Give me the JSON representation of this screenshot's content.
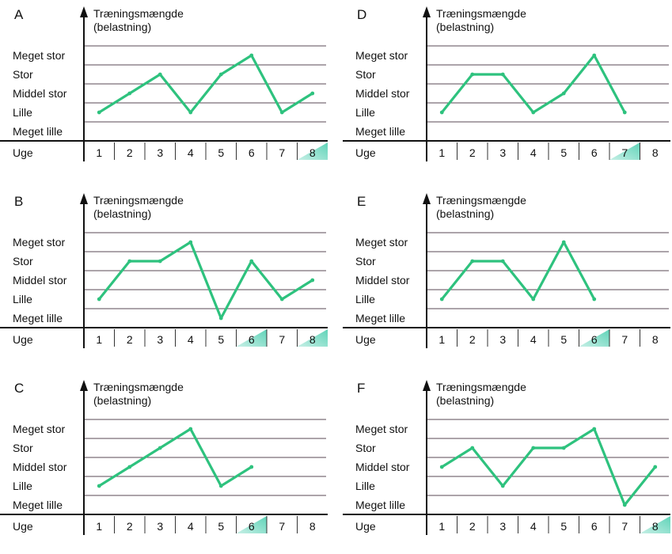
{
  "y_axis_title_line1": "Træningsmængde",
  "y_axis_title_line2": "(belastning)",
  "x_axis_title": "Uge",
  "level_labels": [
    "Meget lille",
    "Lille",
    "Middel stor",
    "Stor",
    "Meget stor"
  ],
  "colors": {
    "line": "#2ec27e",
    "highlight": "#5fd3b8",
    "grid": "#5a4a55",
    "axis": "#111111"
  },
  "chart_data": [
    {
      "type": "line",
      "title": "A",
      "xlabel": "Uge",
      "ylabel": "Træningsmængde (belastning)",
      "categories": [
        "1",
        "2",
        "3",
        "4",
        "5",
        "6",
        "7",
        "8"
      ],
      "levels": [
        "Meget lille",
        "Lille",
        "Middel stor",
        "Stor",
        "Meget stor"
      ],
      "values": [
        2,
        3,
        4,
        2,
        4,
        5,
        2,
        3
      ],
      "highlighted_weeks": [
        "8"
      ],
      "grid": true
    },
    {
      "type": "line",
      "title": "B",
      "xlabel": "Uge",
      "ylabel": "Træningsmængde (belastning)",
      "categories": [
        "1",
        "2",
        "3",
        "4",
        "5",
        "6",
        "7",
        "8"
      ],
      "levels": [
        "Meget lille",
        "Lille",
        "Middel stor",
        "Stor",
        "Meget stor"
      ],
      "values": [
        2,
        4,
        4,
        5,
        1,
        4,
        2,
        3
      ],
      "highlighted_weeks": [
        "6",
        "8"
      ],
      "grid": true
    },
    {
      "type": "line",
      "title": "C",
      "xlabel": "Uge",
      "ylabel": "Træningsmængde (belastning)",
      "categories": [
        "1",
        "2",
        "3",
        "4",
        "5",
        "6",
        "7",
        "8"
      ],
      "levels": [
        "Meget lille",
        "Lille",
        "Middel stor",
        "Stor",
        "Meget stor"
      ],
      "values": [
        2,
        3,
        4,
        5,
        2,
        3,
        null,
        null
      ],
      "highlighted_weeks": [
        "6"
      ],
      "grid": true
    },
    {
      "type": "line",
      "title": "D",
      "xlabel": "Uge",
      "ylabel": "Træningsmængde (belastning)",
      "categories": [
        "1",
        "2",
        "3",
        "4",
        "5",
        "6",
        "7",
        "8"
      ],
      "levels": [
        "Meget lille",
        "Lille",
        "Middel stor",
        "Stor",
        "Meget stor"
      ],
      "values": [
        2,
        4,
        4,
        2,
        3,
        5,
        2,
        null
      ],
      "highlighted_weeks": [
        "7"
      ],
      "grid": true
    },
    {
      "type": "line",
      "title": "E",
      "xlabel": "Uge",
      "ylabel": "Træningsmængde (belastning)",
      "categories": [
        "1",
        "2",
        "3",
        "4",
        "5",
        "6",
        "7",
        "8"
      ],
      "levels": [
        "Meget lille",
        "Lille",
        "Middel stor",
        "Stor",
        "Meget stor"
      ],
      "values": [
        2,
        4,
        4,
        2,
        5,
        2,
        null,
        null
      ],
      "highlighted_weeks": [
        "6"
      ],
      "grid": true
    },
    {
      "type": "line",
      "title": "F",
      "xlabel": "Uge",
      "ylabel": "Træningsmængde (belastning)",
      "categories": [
        "1",
        "2",
        "3",
        "4",
        "5",
        "6",
        "7",
        "8"
      ],
      "levels": [
        "Meget lille",
        "Lille",
        "Middel stor",
        "Stor",
        "Meget stor"
      ],
      "values": [
        3,
        4,
        2,
        4,
        4,
        5,
        1,
        3
      ],
      "highlighted_weeks": [
        "8"
      ],
      "grid": true
    }
  ]
}
